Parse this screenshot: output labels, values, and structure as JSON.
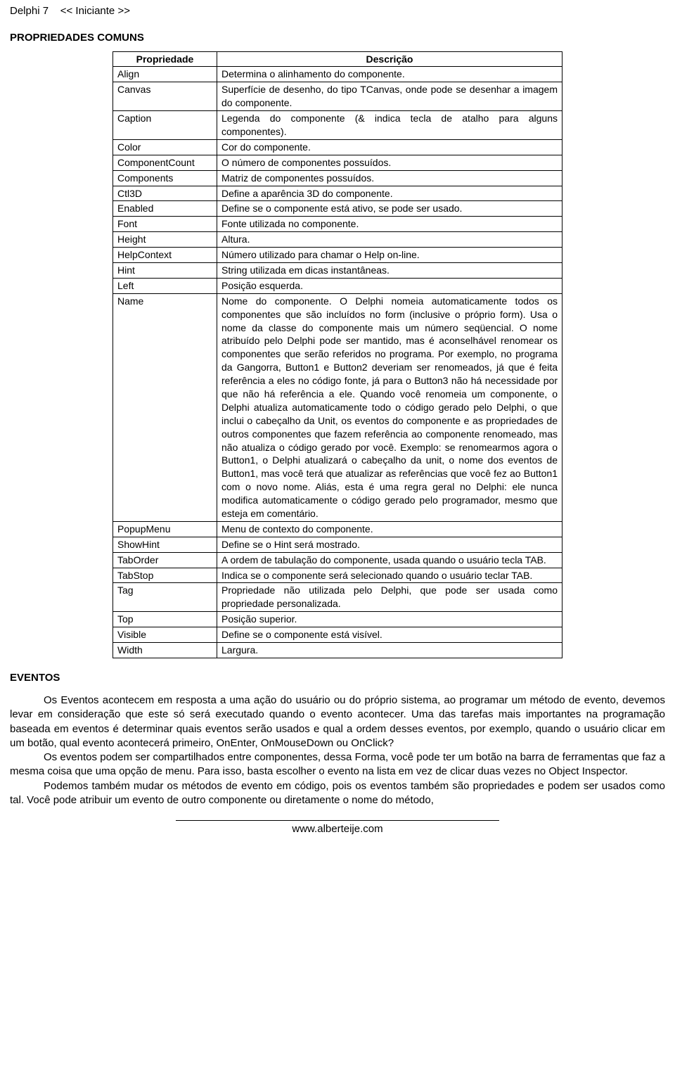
{
  "header": {
    "product": "Delphi 7",
    "breadcrumb": "<< Iniciante >>"
  },
  "section1_title": "PROPRIEDADES COMUNS",
  "table": {
    "header_prop": "Propriedade",
    "header_desc": "Descrição",
    "rows": [
      {
        "prop": "Align",
        "desc": "Determina o alinhamento do componente.",
        "justify": false
      },
      {
        "prop": "Canvas",
        "desc": "Superfície de desenho, do tipo TCanvas, onde pode se desenhar a imagem do componente.",
        "justify": true
      },
      {
        "prop": "Caption",
        "desc": "Legenda do componente (& indica tecla de atalho para alguns componentes).",
        "justify": true
      },
      {
        "prop": "Color",
        "desc": "Cor do componente.",
        "justify": false
      },
      {
        "prop": "ComponentCount",
        "desc": "O número de componentes possuídos.",
        "justify": false
      },
      {
        "prop": "Components",
        "desc": "Matriz de componentes possuídos.",
        "justify": false
      },
      {
        "prop": "Ctl3D",
        "desc": "Define a aparência 3D do componente.",
        "justify": false
      },
      {
        "prop": "Enabled",
        "desc": "Define se o componente está ativo, se pode ser usado.",
        "justify": true
      },
      {
        "prop": "Font",
        "desc": "Fonte utilizada no componente.",
        "justify": false
      },
      {
        "prop": "Height",
        "desc": "Altura.",
        "justify": false
      },
      {
        "prop": "HelpContext",
        "desc": "Número utilizado para chamar o Help on-line.",
        "justify": false
      },
      {
        "prop": "Hint",
        "desc": "String utilizada em dicas instantâneas.",
        "justify": false
      },
      {
        "prop": "Left",
        "desc": "Posição esquerda.",
        "justify": false
      },
      {
        "prop": "Name",
        "desc": "Nome do componente. O Delphi nomeia automaticamente todos os componentes que são incluídos no form (inclusive o próprio form). Usa o nome da classe do componente mais um número seqüencial. O nome atribuído pelo Delphi pode ser mantido, mas é aconselhável renomear os componentes que serão referidos no programa. Por exemplo, no programa da Gangorra, Button1 e Button2 deveriam ser renomeados, já que é feita referência a eles no código fonte, já para o Button3 não há necessidade por que não há referência a ele. Quando você renomeia um componente, o Delphi atualiza automaticamente todo o código gerado pelo Delphi, o que inclui o cabeçalho da Unit, os eventos do componente e as propriedades de outros componentes que fazem referência ao componente renomeado, mas não atualiza o código gerado por você. Exemplo: se renomearmos agora o Button1, o Delphi atualizará o cabeçalho da unit, o nome dos eventos de Button1, mas você terá que atualizar as referências que você fez ao Button1 com o novo nome. Aliás, esta é uma regra geral no Delphi: ele nunca modifica automaticamente o código gerado pelo programador, mesmo que esteja em comentário.",
        "justify": true
      },
      {
        "prop": "PopupMenu",
        "desc": "Menu de contexto do componente.",
        "justify": false
      },
      {
        "prop": "ShowHint",
        "desc": "Define se o Hint será mostrado.",
        "justify": false
      },
      {
        "prop": "TabOrder",
        "desc": "A ordem de tabulação do componente, usada quando o usuário tecla TAB.",
        "justify": true
      },
      {
        "prop": "TabStop",
        "desc": "Indica se o componente será selecionado quando o usuário teclar TAB.",
        "justify": true
      },
      {
        "prop": "Tag",
        "desc": "Propriedade não utilizada pelo Delphi, que pode ser usada como propriedade personalizada.",
        "justify": true
      },
      {
        "prop": "Top",
        "desc": "Posição superior.",
        "justify": false
      },
      {
        "prop": "Visible",
        "desc": "Define se o componente está visível.",
        "justify": false
      },
      {
        "prop": "Width",
        "desc": "Largura.",
        "justify": false
      }
    ]
  },
  "section2_title": "EVENTOS",
  "paragraphs": {
    "p1": "Os Eventos acontecem em resposta a uma ação do usuário ou do próprio sistema, ao programar um método de evento, devemos levar em consideração que este só será executado quando o evento acontecer. Uma das tarefas mais importantes na programação baseada em eventos é determinar quais eventos serão usados e qual a ordem desses eventos, por exemplo, quando o usuário clicar em um botão, qual evento acontecerá primeiro, OnEnter, OnMouseDown ou OnClick?",
    "p2": "Os eventos podem ser compartilhados entre componentes, dessa Forma, você pode ter um botão na barra de ferramentas que faz a mesma coisa que uma opção de menu. Para isso, basta escolher o evento na lista em vez de clicar duas vezes no Object Inspector.",
    "p3": "Podemos também mudar os métodos de evento em código, pois os eventos também são propriedades e podem ser usados como tal. Você pode atribuir um evento de outro componente ou diretamente o nome do método,"
  },
  "footer": "www.alberteije.com"
}
